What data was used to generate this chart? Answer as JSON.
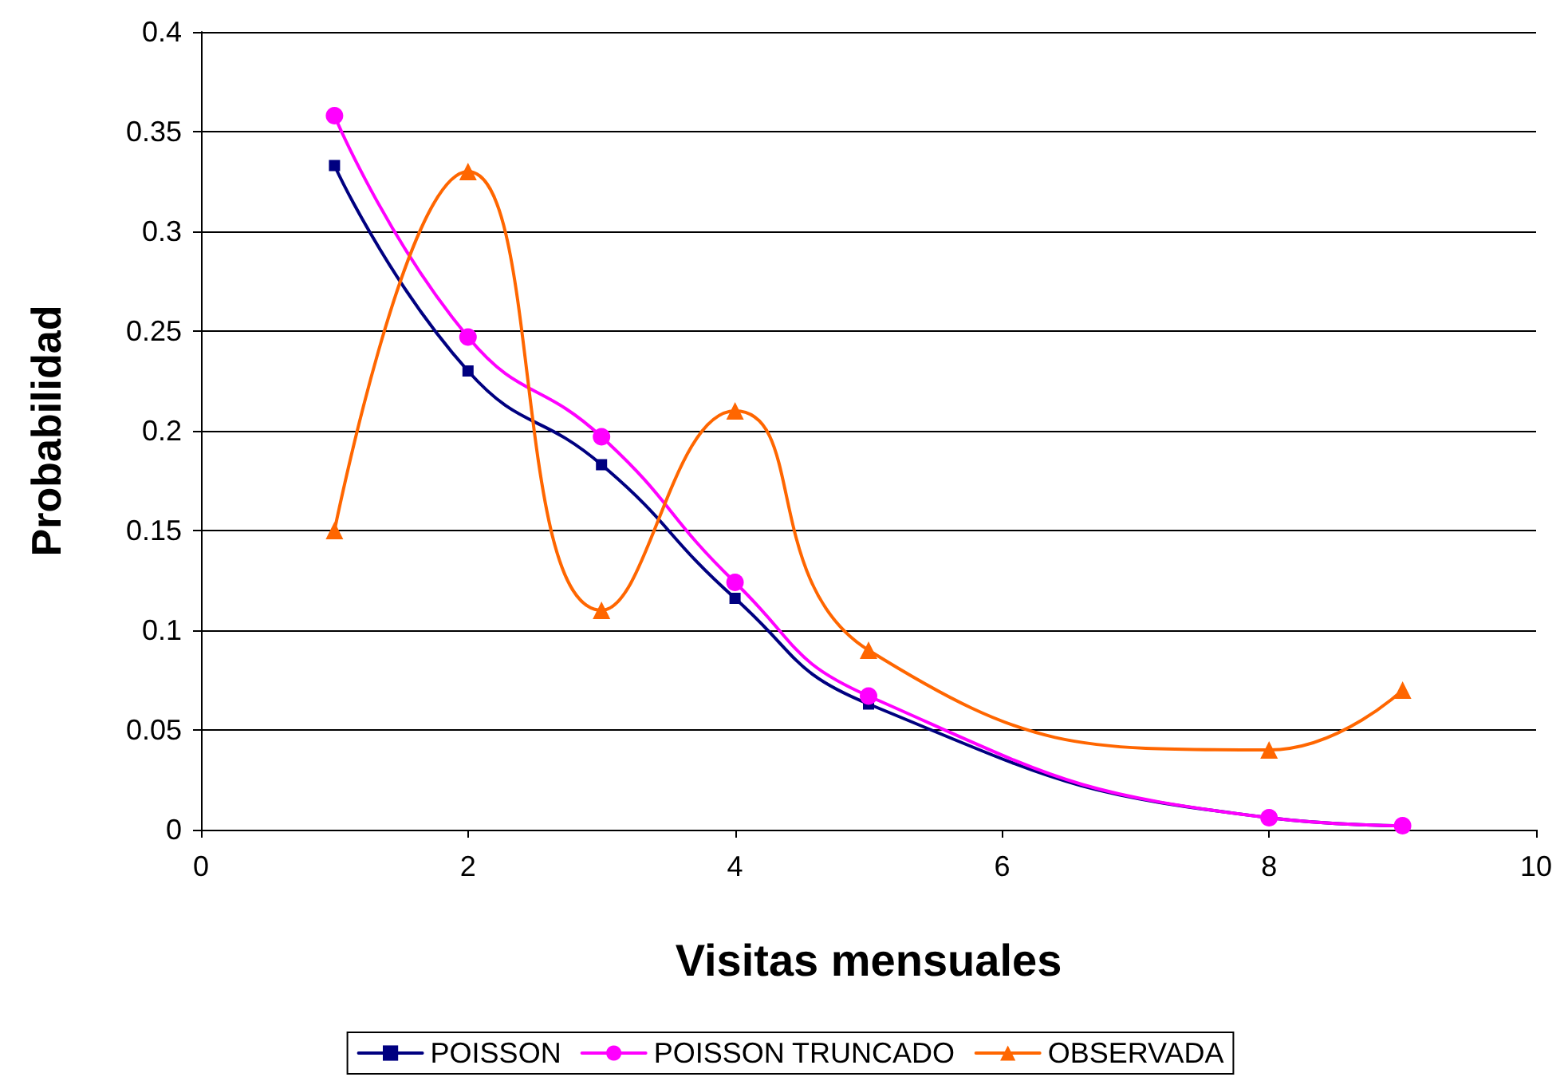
{
  "chart_data": {
    "type": "line",
    "xlabel": "Visitas mensuales",
    "ylabel": "Probabilidad",
    "x": [
      1,
      2,
      3,
      4,
      5,
      8,
      9
    ],
    "series": [
      {
        "name": "POISSON",
        "color": "#000080",
        "marker": "square",
        "values": [
          0.333,
          0.23,
          0.183,
          0.116,
          0.063,
          0.006,
          0.002
        ]
      },
      {
        "name": "POISSON TRUNCADO",
        "color": "#ff00ff",
        "marker": "circle",
        "values": [
          0.358,
          0.247,
          0.197,
          0.124,
          0.067,
          0.006,
          0.002
        ]
      },
      {
        "name": "OBSERVADA",
        "color": "#ff6600",
        "marker": "triangle",
        "values": [
          0.15,
          0.33,
          0.11,
          0.21,
          0.09,
          0.04,
          0.07
        ]
      }
    ],
    "xlim": [
      0,
      10
    ],
    "xticks": [
      0,
      2,
      4,
      6,
      8,
      10
    ],
    "ylim": [
      0,
      0.4
    ],
    "yticks": [
      0,
      0.05,
      0.1,
      0.15,
      0.2,
      0.25,
      0.3,
      0.35,
      0.4
    ],
    "grid": "y",
    "legend": "bottom"
  }
}
